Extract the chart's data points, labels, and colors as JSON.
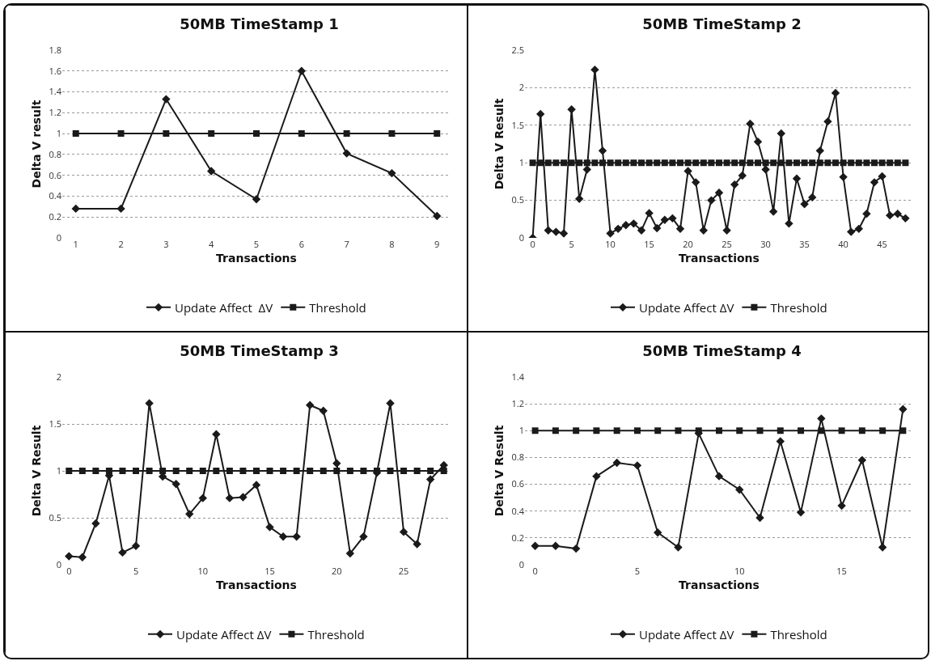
{
  "chart_data": [
    {
      "type": "line",
      "title": "50MB TimeStamp 1",
      "xlabel": "Transactions",
      "ylabel": "Delta V result",
      "categories": [
        "1",
        "2",
        "3",
        "4",
        "5",
        "6",
        "7",
        "8",
        "9"
      ],
      "ylim": [
        0,
        1.8
      ],
      "yticks": [
        0,
        0.2,
        0.4,
        0.6,
        0.8,
        1,
        1.2,
        1.4,
        1.6,
        1.8
      ],
      "grid": "y",
      "legend": "bottom",
      "line_style": "solid",
      "series": [
        {
          "name": "Update Affect  ΔV",
          "color": "#1a1a1a",
          "marker": "diamond",
          "values": [
            0.28,
            0.28,
            1.33,
            0.64,
            0.37,
            1.6,
            0.81,
            0.62,
            0.21
          ]
        },
        {
          "name": "Threshold",
          "color": "#1a1a1a",
          "marker": "square",
          "values": [
            1,
            1,
            1,
            1,
            1,
            1,
            1,
            1,
            1
          ]
        }
      ]
    },
    {
      "type": "line",
      "title": "50MB TimeStamp 2",
      "xlabel": "Transactions",
      "ylabel": "Delta V Result",
      "x": [
        0,
        1,
        2,
        3,
        4,
        5,
        6,
        7,
        8,
        9,
        10,
        11,
        12,
        13,
        14,
        15,
        16,
        17,
        18,
        19,
        20,
        21,
        22,
        23,
        24,
        25,
        26,
        27,
        28,
        29,
        30,
        31,
        32,
        33,
        34,
        35,
        36,
        37,
        38,
        39,
        40,
        41,
        42,
        43,
        44,
        45,
        46,
        47,
        48
      ],
      "xlim": [
        -1,
        49
      ],
      "xticks": [
        0,
        5,
        10,
        15,
        20,
        25,
        30,
        35,
        40,
        45
      ],
      "ylim": [
        0,
        2.5
      ],
      "yticks": [
        0,
        0.5,
        1,
        1.5,
        2,
        2.5
      ],
      "grid": "y",
      "legend": "bottom",
      "line_style": "solid",
      "series": [
        {
          "name": "Update Affect ΔV",
          "color": "#1a1a1a",
          "marker": "diamond",
          "values": [
            0,
            1.65,
            0.1,
            0.08,
            0.06,
            1.71,
            0.52,
            0.91,
            2.24,
            1.16,
            0.06,
            0.12,
            0.17,
            0.19,
            0.1,
            0.33,
            0.13,
            0.24,
            0.26,
            0.12,
            0.89,
            0.74,
            0.1,
            0.5,
            0.6,
            0.1,
            0.71,
            0.83,
            1.52,
            1.28,
            0.91,
            0.35,
            1.39,
            0.19,
            0.79,
            0.45,
            0.54,
            1.16,
            1.55,
            1.93,
            0.81,
            0.08,
            0.12,
            0.32,
            0.74,
            0.82,
            0.3,
            0.32,
            0.26
          ]
        },
        {
          "name": "Threshold",
          "color": "#1a1a1a",
          "marker": "square",
          "values": [
            1,
            1,
            1,
            1,
            1,
            1,
            1,
            1,
            1,
            1,
            1,
            1,
            1,
            1,
            1,
            1,
            1,
            1,
            1,
            1,
            1,
            1,
            1,
            1,
            1,
            1,
            1,
            1,
            1,
            1,
            1,
            1,
            1,
            1,
            1,
            1,
            1,
            1,
            1,
            1,
            1,
            1,
            1,
            1,
            1,
            1,
            1,
            1,
            1
          ]
        }
      ]
    },
    {
      "type": "line",
      "title": "50MB TimeStamp 3",
      "xlabel": "Transactions",
      "ylabel": "Delta V Result",
      "x": [
        0,
        1,
        2,
        3,
        4,
        5,
        6,
        7,
        8,
        9,
        10,
        11,
        12,
        13,
        14,
        15,
        16,
        17,
        18,
        19,
        20,
        21,
        22,
        23,
        24,
        25,
        26,
        27,
        28
      ],
      "xlim": [
        -0.5,
        28.5
      ],
      "xticks": [
        0,
        5,
        10,
        15,
        20,
        25
      ],
      "ylim": [
        0,
        2
      ],
      "yticks": [
        0,
        0.5,
        1,
        1.5,
        2
      ],
      "grid": "y",
      "legend": "bottom",
      "line_style": "solid",
      "series": [
        {
          "name": "Update Affect ΔV",
          "color": "#1a1a1a",
          "marker": "diamond",
          "values": [
            0.09,
            0.08,
            0.44,
            0.95,
            0.13,
            0.2,
            1.72,
            0.94,
            0.86,
            0.54,
            0.71,
            1.39,
            0.71,
            0.72,
            0.85,
            0.4,
            0.3,
            0.3,
            1.7,
            1.64,
            1.08,
            0.12,
            0.3,
            0.98,
            1.72,
            0.35,
            0.22,
            0.91,
            1.06
          ]
        },
        {
          "name": "Threshold",
          "color": "#1a1a1a",
          "marker": "square",
          "values": [
            1,
            1,
            1,
            1,
            1,
            1,
            1,
            1,
            1,
            1,
            1,
            1,
            1,
            1,
            1,
            1,
            1,
            1,
            1,
            1,
            1,
            1,
            1,
            1,
            1,
            1,
            1,
            1,
            1
          ]
        }
      ]
    },
    {
      "type": "line",
      "title": "50MB TimeStamp 4",
      "xlabel": "Transactions",
      "ylabel": "Delta V Result",
      "x": [
        0,
        1,
        2,
        3,
        4,
        5,
        6,
        7,
        8,
        9,
        10,
        11,
        12,
        13,
        14,
        15,
        16,
        17,
        18
      ],
      "xlim": [
        -0.5,
        18.5
      ],
      "xticks": [
        0,
        5,
        10,
        15
      ],
      "ylim": [
        0,
        1.4
      ],
      "yticks": [
        0,
        0.2,
        0.4,
        0.6,
        0.8,
        1,
        1.2,
        1.4
      ],
      "grid": "y",
      "legend": "bottom",
      "line_style": "solid",
      "series": [
        {
          "name": "Update Affect ΔV",
          "color": "#1a1a1a",
          "marker": "diamond",
          "values": [
            0.14,
            0.14,
            0.12,
            0.66,
            0.76,
            0.74,
            0.24,
            0.13,
            0.98,
            0.66,
            0.56,
            0.35,
            0.92,
            0.39,
            1.09,
            0.44,
            0.78,
            0.13,
            1.16
          ]
        },
        {
          "name": "Threshold",
          "color": "#1a1a1a",
          "marker": "square",
          "values": [
            1,
            1,
            1,
            1,
            1,
            1,
            1,
            1,
            1,
            1,
            1,
            1,
            1,
            1,
            1,
            1,
            1,
            1,
            1
          ]
        }
      ]
    }
  ]
}
